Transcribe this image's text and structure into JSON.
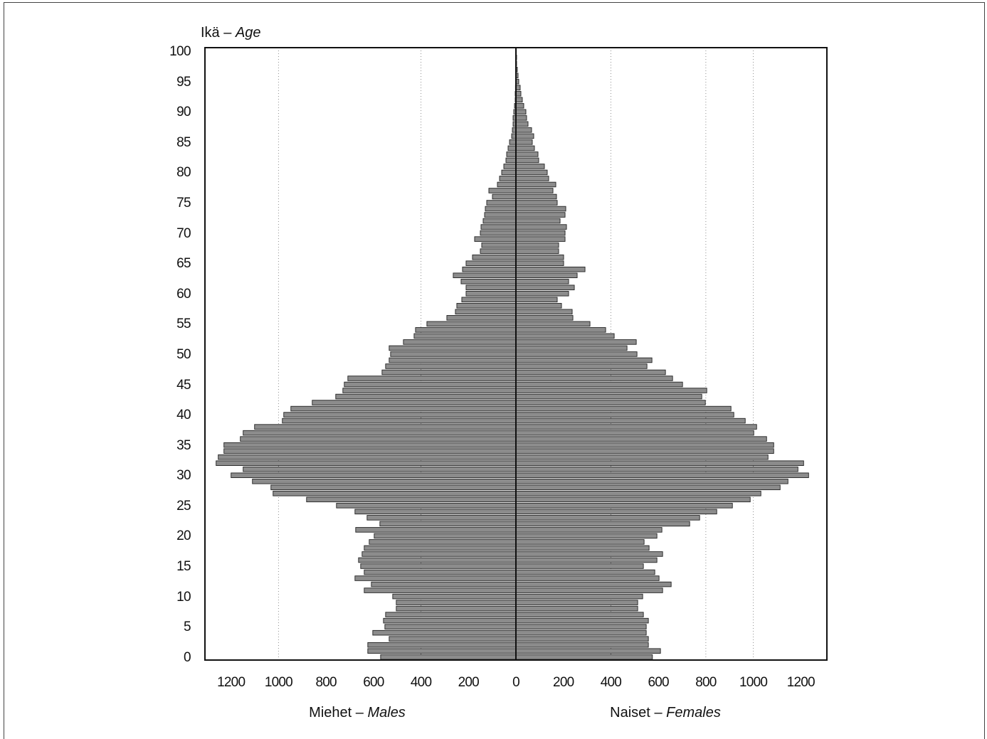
{
  "chart_data": {
    "type": "bar",
    "orientation": "horizontal",
    "ylabel": {
      "fi": "Ikä",
      "en": "Age"
    },
    "separator": "–",
    "xlim": [
      -1310,
      1310
    ],
    "ylim": [
      -0.5,
      100.6
    ],
    "grid": true,
    "grid_x": [
      -1000,
      -400,
      400,
      800,
      1000
    ],
    "bar_fill": "#8c8c8c",
    "bar_stroke": "#222222",
    "x_ticks": [
      {
        "value": -1200,
        "label": "1200"
      },
      {
        "value": -1000,
        "label": "1000"
      },
      {
        "value": -800,
        "label": "800"
      },
      {
        "value": -600,
        "label": "600"
      },
      {
        "value": -400,
        "label": "400"
      },
      {
        "value": -200,
        "label": "200"
      },
      {
        "value": 0,
        "label": "0"
      },
      {
        "value": 200,
        "label": "200"
      },
      {
        "value": 400,
        "label": "400"
      },
      {
        "value": 600,
        "label": "600"
      },
      {
        "value": 800,
        "label": "800"
      },
      {
        "value": 1000,
        "label": "1000"
      },
      {
        "value": 1200,
        "label": "1200"
      }
    ],
    "y_ticks": [
      0,
      5,
      10,
      15,
      20,
      25,
      30,
      35,
      40,
      45,
      50,
      55,
      60,
      65,
      70,
      75,
      80,
      85,
      90,
      95,
      100
    ],
    "categories": [
      0,
      1,
      2,
      3,
      4,
      5,
      6,
      7,
      8,
      9,
      10,
      11,
      12,
      13,
      14,
      15,
      16,
      17,
      18,
      19,
      20,
      21,
      22,
      23,
      24,
      25,
      26,
      27,
      28,
      29,
      30,
      31,
      32,
      33,
      34,
      35,
      36,
      37,
      38,
      39,
      40,
      41,
      42,
      43,
      44,
      45,
      46,
      47,
      48,
      49,
      50,
      51,
      52,
      53,
      54,
      55,
      56,
      57,
      58,
      59,
      60,
      61,
      62,
      63,
      64,
      65,
      66,
      67,
      68,
      69,
      70,
      71,
      72,
      73,
      74,
      75,
      76,
      77,
      78,
      79,
      80,
      81,
      82,
      83,
      84,
      85,
      86,
      87,
      88,
      89,
      90,
      91,
      92,
      93,
      94,
      95,
      96,
      97,
      98,
      99,
      100
    ],
    "series": [
      {
        "label": {
          "fi": "Miehet",
          "en": "Males"
        },
        "values": [
          570,
          624,
          624,
          534,
          603,
          552,
          558,
          549,
          504,
          504,
          519,
          639,
          609,
          678,
          639,
          654,
          663,
          648,
          639,
          618,
          597,
          675,
          573,
          627,
          678,
          756,
          882,
          1023,
          1032,
          1110,
          1200,
          1149,
          1263,
          1254,
          1230,
          1230,
          1161,
          1149,
          1101,
          984,
          978,
          948,
          858,
          759,
          729,
          723,
          708,
          564,
          549,
          534,
          528,
          534,
          474,
          429,
          423,
          375,
          291,
          255,
          249,
          228,
          210,
          210,
          231,
          264,
          225,
          210,
          183,
          150,
          144,
          174,
          150,
          147,
          138,
          132,
          129,
          123,
          99,
          114,
          78,
          69,
          60,
          51,
          42,
          39,
          33,
          27,
          18,
          15,
          12,
          12,
          9,
          6,
          3,
          3,
          2,
          1,
          0,
          0,
          0,
          0,
          0
        ]
      },
      {
        "label": {
          "fi": "Naiset",
          "en": "Females"
        },
        "values": [
          575,
          609,
          558,
          558,
          549,
          549,
          558,
          537,
          513,
          513,
          534,
          618,
          654,
          603,
          585,
          537,
          594,
          618,
          561,
          540,
          594,
          615,
          732,
          774,
          846,
          912,
          987,
          1032,
          1113,
          1146,
          1233,
          1188,
          1212,
          1062,
          1086,
          1086,
          1056,
          1002,
          1014,
          966,
          918,
          906,
          798,
          783,
          804,
          702,
          660,
          630,
          552,
          573,
          510,
          468,
          507,
          414,
          378,
          312,
          240,
          237,
          192,
          174,
          222,
          246,
          222,
          258,
          291,
          201,
          201,
          180,
          180,
          207,
          207,
          213,
          186,
          207,
          210,
          174,
          171,
          156,
          168,
          138,
          132,
          120,
          96,
          93,
          78,
          69,
          75,
          66,
          51,
          45,
          42,
          33,
          27,
          21,
          18,
          12,
          9,
          6,
          3,
          3,
          2
        ]
      }
    ]
  }
}
